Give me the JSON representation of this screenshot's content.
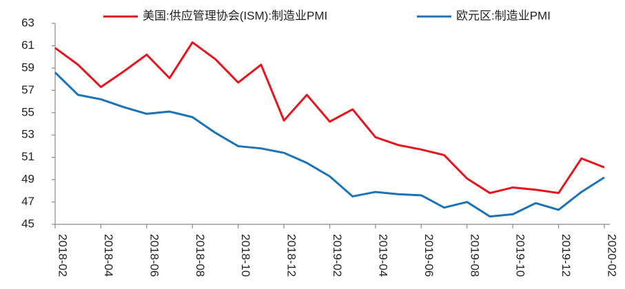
{
  "chart_data": {
    "type": "line",
    "categories": [
      "2018-02",
      null,
      "2018-04",
      null,
      "2018-06",
      null,
      "2018-08",
      null,
      "2018-10",
      null,
      "2018-12",
      null,
      "2019-02",
      null,
      "2019-04",
      null,
      "2019-06",
      null,
      "2019-08",
      null,
      "2019-10",
      null,
      "2019-12",
      null,
      "2020-02"
    ],
    "series": [
      {
        "name": "美国:供应管理协会(ISM):制造业PMI",
        "color": "#e8131b",
        "values": [
          60.8,
          59.3,
          57.3,
          58.7,
          60.2,
          58.1,
          61.3,
          59.8,
          57.7,
          59.3,
          54.3,
          56.6,
          54.2,
          55.3,
          52.8,
          52.1,
          51.7,
          51.2,
          49.1,
          47.8,
          48.3,
          48.1,
          47.8,
          50.9,
          50.1
        ]
      },
      {
        "name": "欧元区:制造业PMI",
        "color": "#1a72b8",
        "values": [
          58.6,
          56.6,
          56.2,
          55.5,
          54.9,
          55.1,
          54.6,
          53.2,
          52.0,
          51.8,
          51.4,
          50.5,
          49.3,
          47.5,
          47.9,
          47.7,
          47.6,
          46.5,
          47.0,
          45.7,
          45.9,
          46.9,
          46.3,
          47.9,
          49.2
        ]
      }
    ],
    "ylim": [
      45,
      63
    ],
    "yticks": [
      45,
      47,
      49,
      51,
      53,
      55,
      57,
      59,
      61,
      63
    ],
    "legend": "top",
    "grid": false
  }
}
